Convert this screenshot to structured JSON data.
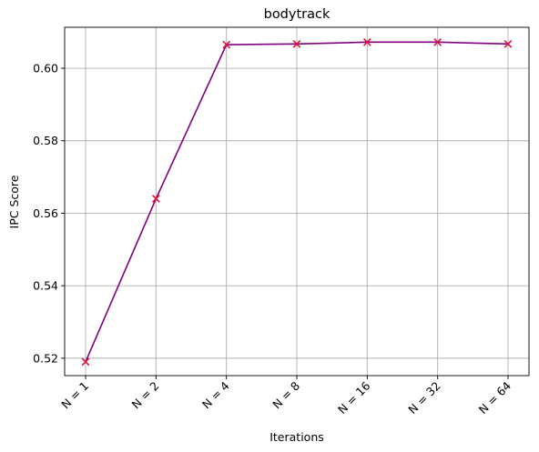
{
  "chart_data": {
    "type": "line",
    "title": "bodytrack",
    "xlabel": "Iterations",
    "ylabel": "IPC Score",
    "categories": [
      "N = 1",
      "N = 2",
      "N = 4",
      "N = 8",
      "N = 16",
      "N = 32",
      "N = 64"
    ],
    "series": [
      {
        "values": [
          0.519,
          0.564,
          0.6065,
          0.6067,
          0.6072,
          0.6072,
          0.6067
        ],
        "line_color": "#800080",
        "marker_color": "#dc143c",
        "marker": "x"
      }
    ],
    "ylim": [
      0.5152,
      0.6113
    ],
    "yticks": [
      0.52,
      0.54,
      0.56,
      0.58,
      0.6
    ],
    "ytick_labels": [
      "0.52",
      "0.54",
      "0.56",
      "0.58",
      "0.60"
    ],
    "grid": true
  }
}
